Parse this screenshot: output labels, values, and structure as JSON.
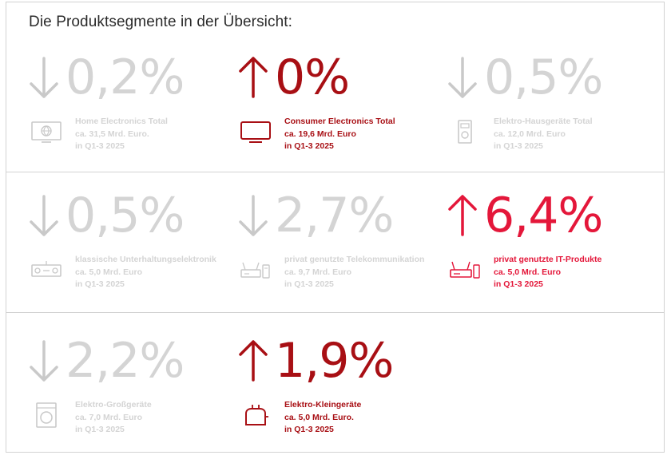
{
  "heading": "Die Produktsegmente in der Übersicht:",
  "colors": {
    "neutral": "#d4d4d4",
    "growth_dark": "#a80f14",
    "growth_highlight": "#e4173a"
  },
  "segments": [
    {
      "direction": "down",
      "value": "0,2%",
      "icon": "tv-globe-icon",
      "line1": "Home Electronics Total",
      "line2": "ca. 31,5 Mrd. Euro.",
      "line3": "in Q1-3 2025",
      "style": "grey"
    },
    {
      "direction": "up",
      "value": "0%",
      "icon": "tv-icon",
      "line1": "Consumer Electronics Total",
      "line2": "ca. 19,6 Mrd. Euro",
      "line3": "in Q1-3 2025",
      "style": "red"
    },
    {
      "direction": "down",
      "value": "0,5%",
      "icon": "coffee-machine-icon",
      "line1": "Elektro-Hausgeräte Total",
      "line2": "ca. 12,0 Mrd. Euro",
      "line3": "in Q1-3 2025",
      "style": "grey"
    },
    {
      "direction": "down",
      "value": "0,5%",
      "icon": "receiver-icon",
      "line1": "klassische Unterhaltungselektronik",
      "line2": "ca. 5,0 Mrd. Euro",
      "line3": "in Q1-3 2025",
      "style": "grey"
    },
    {
      "direction": "down",
      "value": "2,7%",
      "icon": "router-phone-icon",
      "line1": "privat genutzte Telekommunikation",
      "line2": "ca. 9,7 Mrd. Euro",
      "line3": "in Q1-3 2025",
      "style": "grey"
    },
    {
      "direction": "up",
      "value": "6,4%",
      "icon": "router-icon",
      "line1": "privat genutzte IT-Produkte",
      "line2": "ca. 5,0 Mrd. Euro",
      "line3": "in Q1-3 2025",
      "style": "pink"
    },
    {
      "direction": "down",
      "value": "2,2%",
      "icon": "washing-machine-icon",
      "line1": "Elektro-Großgeräte",
      "line2": "ca. 7,0 Mrd. Euro",
      "line3": "in Q1-3 2025",
      "style": "grey"
    },
    {
      "direction": "up",
      "value": "1,9%",
      "icon": "toaster-icon",
      "line1": "Elektro-Kleingeräte",
      "line2": "ca. 5,0 Mrd. Euro.",
      "line3": "in Q1-3 2025",
      "style": "red"
    }
  ]
}
